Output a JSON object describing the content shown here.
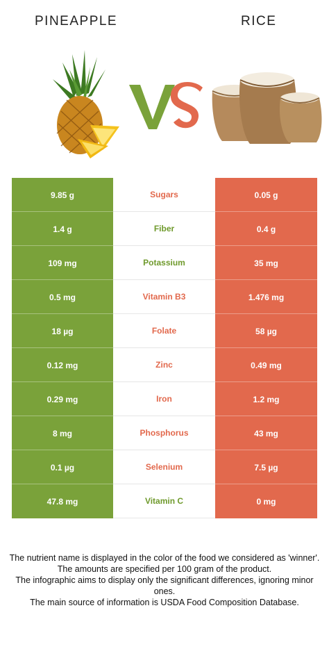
{
  "header": {
    "left_title": "PINEAPPLE",
    "right_title": "RICE",
    "vs_text": "VS"
  },
  "colors": {
    "left": "#7aa23a",
    "right": "#e2694d"
  },
  "rows": [
    {
      "left": "9.85 g",
      "nutrient": "Sugars",
      "right": "0.05 g",
      "winner": "right"
    },
    {
      "left": "1.4 g",
      "nutrient": "Fiber",
      "right": "0.4 g",
      "winner": "left"
    },
    {
      "left": "109 mg",
      "nutrient": "Potassium",
      "right": "35 mg",
      "winner": "left"
    },
    {
      "left": "0.5 mg",
      "nutrient": "Vitamin B3",
      "right": "1.476 mg",
      "winner": "right"
    },
    {
      "left": "18 µg",
      "nutrient": "Folate",
      "right": "58 µg",
      "winner": "right"
    },
    {
      "left": "0.12 mg",
      "nutrient": "Zinc",
      "right": "0.49 mg",
      "winner": "right"
    },
    {
      "left": "0.29 mg",
      "nutrient": "Iron",
      "right": "1.2 mg",
      "winner": "right"
    },
    {
      "left": "8 mg",
      "nutrient": "Phosphorus",
      "right": "43 mg",
      "winner": "right"
    },
    {
      "left": "0.1 µg",
      "nutrient": "Selenium",
      "right": "7.5 µg",
      "winner": "right"
    },
    {
      "left": "47.8 mg",
      "nutrient": "Vitamin C",
      "right": "0 mg",
      "winner": "left"
    }
  ],
  "footnotes": [
    "The nutrient name is displayed in the color of the food we considered as 'winner'.",
    "The amounts are specified per 100 gram of the product.",
    "The infographic aims to display only the significant differences, ignoring minor ones.",
    "The main source of information is USDA Food Composition Database."
  ]
}
